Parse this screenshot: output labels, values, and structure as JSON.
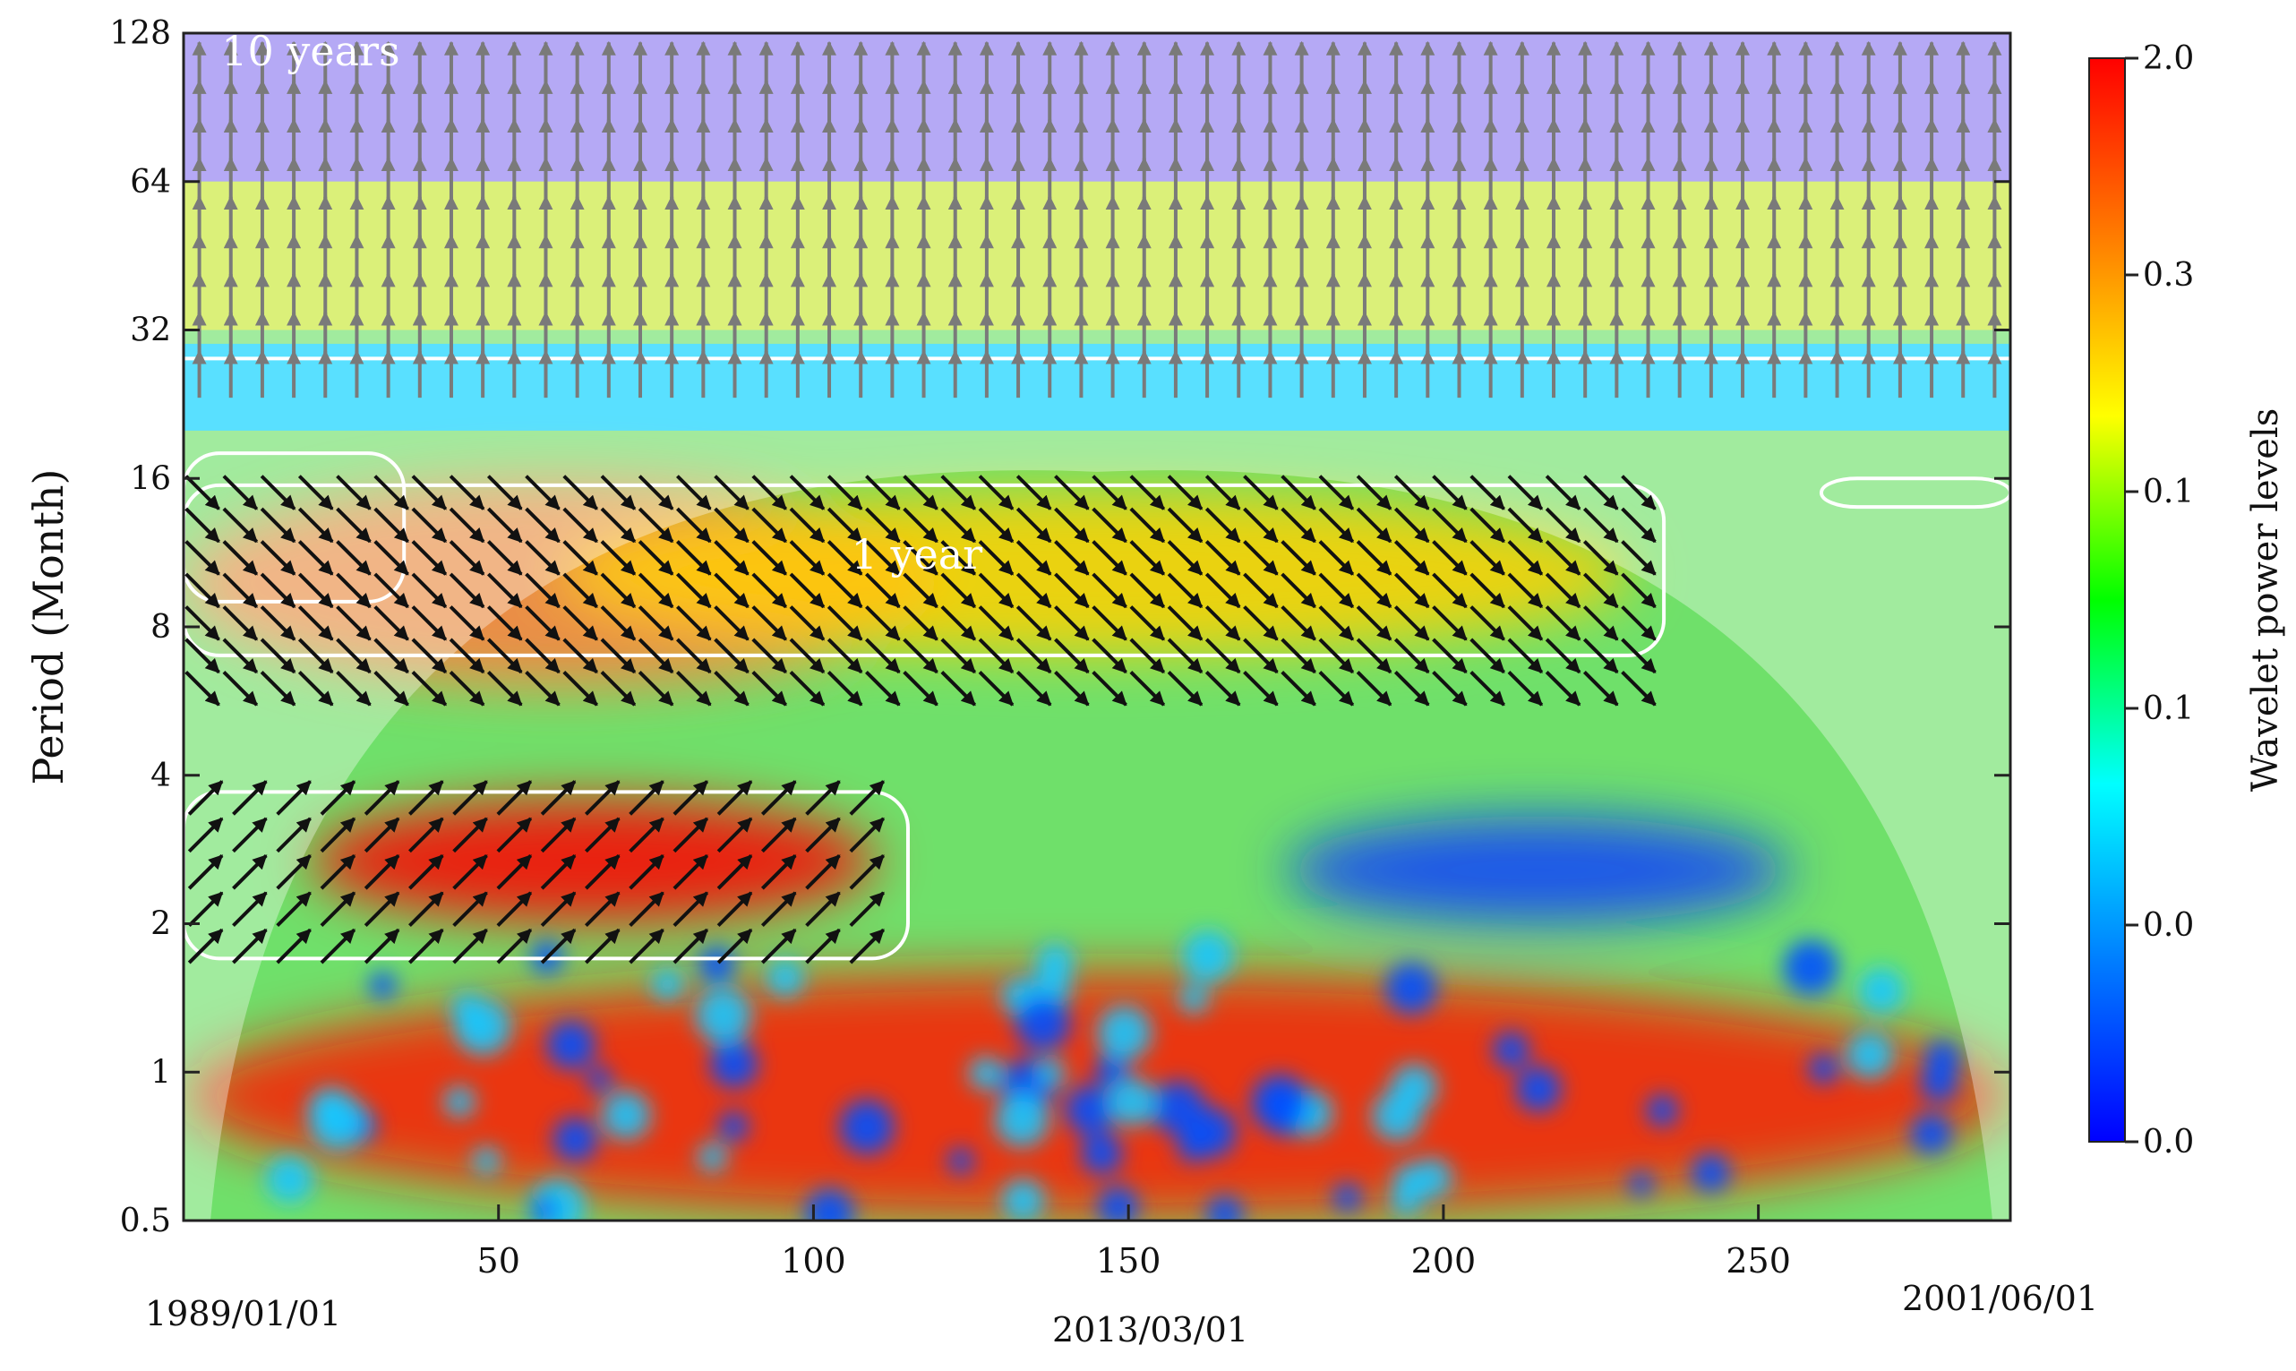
{
  "chart_data": {
    "type": "heatmap",
    "title": "",
    "ylabel": "Period (Month)",
    "xlabel": "",
    "x_ticks": [
      50,
      100,
      150,
      200,
      250
    ],
    "xlim": [
      0,
      290
    ],
    "y_scale": "log2",
    "y_ticks": [
      0.5,
      1,
      2,
      4,
      8,
      16,
      32,
      64,
      128
    ],
    "y_tick_labels": [
      "0.5",
      "1",
      "2",
      "4",
      "8",
      "16",
      "32",
      "64",
      "128"
    ],
    "ylim": [
      0.5,
      128
    ],
    "date_labels": {
      "left": "1989/01/01",
      "center": "2013/03/01",
      "right": "2001/06/01"
    },
    "annotations": [
      {
        "text": "10 years",
        "x": 6,
        "y": 110
      },
      {
        "text": "1 year",
        "x": 106,
        "y": 10.5
      }
    ],
    "colorbar": {
      "label": "Wavelet power levels",
      "tick_labels": [
        "2.0",
        "0.3",
        "0.1",
        "0.1",
        "0.0",
        "0.0"
      ],
      "colors": [
        "#ff0000",
        "#ff8000",
        "#ffff00",
        "#00ff00",
        "#00ffff",
        "#0080ff",
        "#0000ff"
      ]
    },
    "power_features": [
      {
        "x": [
          0,
          290
        ],
        "period": [
          64,
          128
        ],
        "level": "low",
        "color": "#8e7cf0"
      },
      {
        "x": [
          0,
          290
        ],
        "period": [
          32,
          64
        ],
        "level": "medium",
        "color": "#c8e832"
      },
      {
        "x": [
          0,
          290
        ],
        "period": [
          20,
          30
        ],
        "level": "low",
        "color": "#00d0ff"
      },
      {
        "x": [
          0,
          120
        ],
        "period": [
          6,
          16
        ],
        "level": "high",
        "color": "#ff8040"
      },
      {
        "x": [
          60,
          230
        ],
        "period": [
          7,
          15
        ],
        "level": "high",
        "color": "#ffd000"
      },
      {
        "x": [
          20,
          110
        ],
        "period": [
          2,
          3.6
        ],
        "level": "high",
        "color": "#ff0000"
      },
      {
        "x": [
          175,
          255
        ],
        "period": [
          2,
          3.3
        ],
        "level": "low",
        "color": "#1040ff"
      },
      {
        "x": [
          0,
          290
        ],
        "period": [
          0.5,
          1.6
        ],
        "level": "high",
        "color": "#ff1a00"
      }
    ],
    "significance_regions": [
      {
        "x": [
          0,
          35
        ],
        "period": [
          9,
          18
        ]
      },
      {
        "x": [
          0,
          235
        ],
        "period": [
          7,
          15.5
        ]
      },
      {
        "x": [
          0,
          115
        ],
        "period": [
          1.7,
          3.7
        ]
      },
      {
        "x": [
          260,
          290
        ],
        "period": [
          14,
          16
        ]
      },
      {
        "x": [
          0,
          290
        ],
        "period": [
          28,
          28
        ]
      }
    ],
    "phase_arrows": {
      "top_band": {
        "x": [
          0,
          290
        ],
        "period": [
          26,
          128
        ],
        "direction": "up"
      },
      "annual_band": {
        "x": [
          0,
          235
        ],
        "period": [
          6,
          17
        ],
        "direction": "down-right"
      },
      "short_band": {
        "x": [
          0,
          115
        ],
        "period": [
          1.8,
          3.6
        ],
        "direction": "up-right"
      }
    },
    "cone_of_influence": {
      "x": [
        0,
        290
      ],
      "peak_period": 16.5,
      "peak_x": 145
    }
  }
}
